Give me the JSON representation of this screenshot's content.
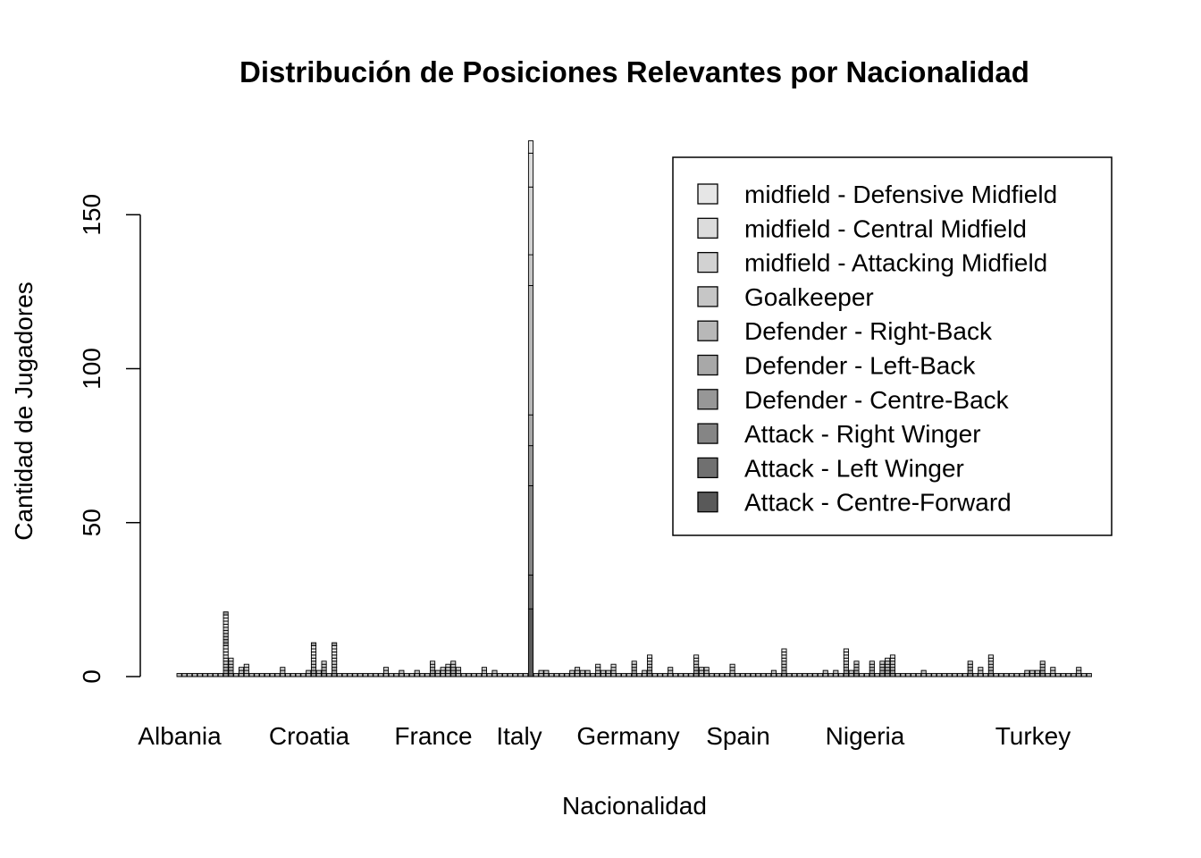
{
  "chart_data": {
    "type": "bar",
    "stacked": true,
    "title": "Distribución de Posiciones Relevantes por Nacionalidad",
    "xlabel": "Nacionalidad",
    "ylabel": "Cantidad de Jugadores",
    "ylim": [
      0,
      174
    ],
    "yticks": [
      0,
      50,
      100,
      150
    ],
    "xtick_labels": [
      "Albania",
      "Croatia",
      "France",
      "Italy",
      "Germany",
      "Spain",
      "Nigeria",
      "Turkey"
    ],
    "grid": false,
    "legend_position": "top-right",
    "legend": [
      {
        "label": "midfield - Defensive Midfield",
        "color": "#e6e6e6"
      },
      {
        "label": "midfield - Central Midfield",
        "color": "#dcdcdc"
      },
      {
        "label": "midfield - Attacking Midfield",
        "color": "#d2d2d2"
      },
      {
        "label": "Goalkeeper",
        "color": "#c6c6c6"
      },
      {
        "label": "Defender - Right-Back",
        "color": "#b8b8b8"
      },
      {
        "label": "Defender - Left-Back",
        "color": "#a8a8a8"
      },
      {
        "label": "Defender - Centre-Back",
        "color": "#979797"
      },
      {
        "label": "Attack - Right Winger",
        "color": "#858585"
      },
      {
        "label": "Attack - Left Winger",
        "color": "#707070"
      },
      {
        "label": "Attack - Centre-Forward",
        "color": "#595959"
      }
    ],
    "bar_totals": [
      1,
      1,
      1,
      1,
      1,
      1,
      1,
      1,
      1,
      21,
      6,
      1,
      3,
      4,
      1,
      1,
      1,
      1,
      1,
      1,
      3,
      1,
      1,
      1,
      1,
      2,
      11,
      2,
      5,
      1,
      11,
      1,
      1,
      1,
      1,
      1,
      1,
      1,
      1,
      1,
      3,
      1,
      1,
      2,
      1,
      1,
      2,
      1,
      1,
      5,
      2,
      3,
      4,
      5,
      3,
      1,
      1,
      1,
      1,
      3,
      1,
      2,
      1,
      1,
      1,
      1,
      1,
      1,
      174,
      1,
      2,
      2,
      1,
      1,
      1,
      1,
      2,
      3,
      2,
      2,
      1,
      4,
      2,
      2,
      4,
      1,
      1,
      1,
      5,
      1,
      2,
      7,
      1,
      1,
      1,
      3,
      1,
      1,
      1,
      1,
      7,
      3,
      3,
      1,
      1,
      1,
      1,
      4,
      1,
      1,
      1,
      1,
      1,
      1,
      1,
      2,
      1,
      9,
      1,
      1,
      1,
      1,
      1,
      1,
      1,
      2,
      1,
      2,
      1,
      9,
      2,
      5,
      1,
      1,
      5,
      1,
      5,
      6,
      7,
      1,
      1,
      1,
      1,
      1,
      2,
      1,
      1,
      1,
      1,
      1,
      1,
      1,
      1,
      5,
      1,
      3,
      1,
      7,
      1,
      1,
      1,
      1,
      1,
      1,
      2,
      2,
      2,
      5,
      1,
      3,
      1,
      1,
      1,
      1,
      3,
      1,
      1
    ]
  }
}
